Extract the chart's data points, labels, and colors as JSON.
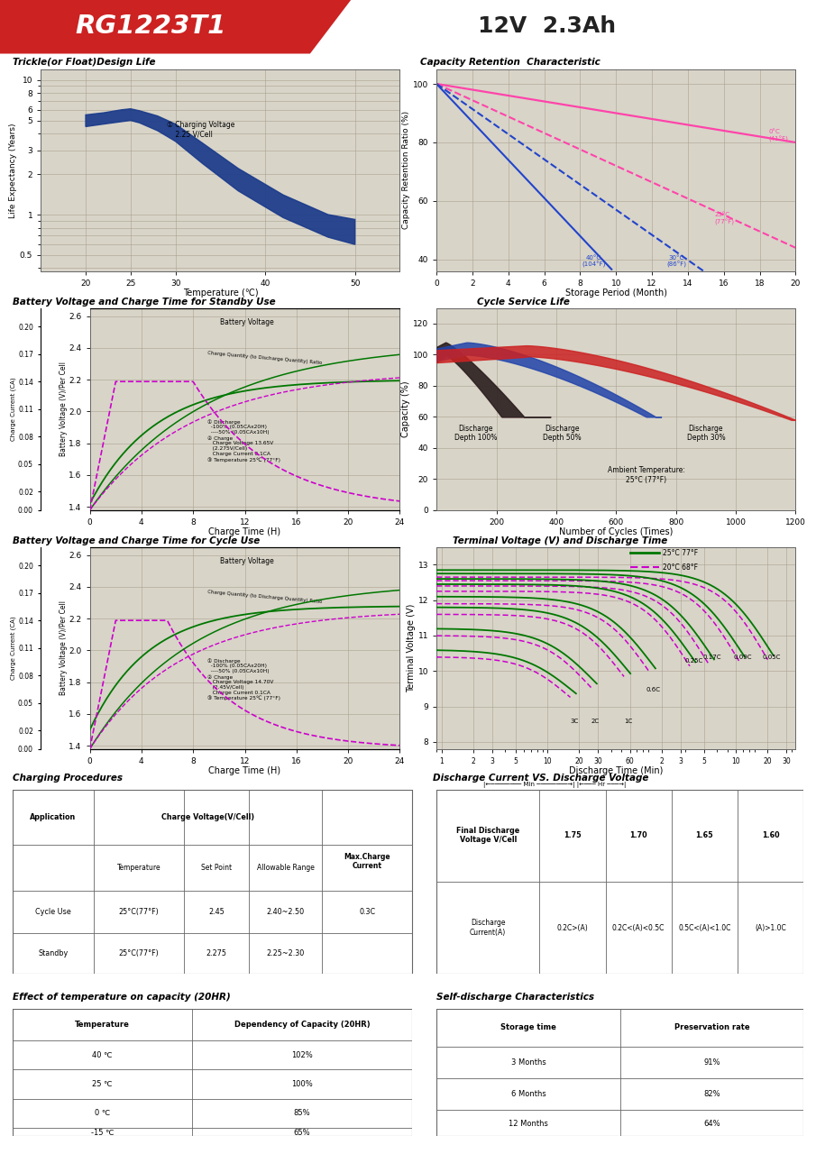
{
  "title_model": "RG1223T1",
  "title_spec": "12V  2.3Ah",
  "header_bg": "#cc2222",
  "page_bg": "#ffffff",
  "chart_bg": "#d8d4c8",
  "grid_color": "#aaa090",
  "trickle_title": "Trickle(or Float)Design Life",
  "trickle_xlabel": "Temperature (℃)",
  "trickle_ylabel": "Life Expectancy (Years)",
  "trickle_annotation": "① Charging Voltage\n    2.25 V/Cell",
  "trickle_curve_color": "#1a3a8a",
  "capacity_title": "Capacity Retention  Characteristic",
  "capacity_xlabel": "Storage Period (Month)",
  "capacity_ylabel": "Capacity Retention Ratio (%)",
  "bv_standby_title": "Battery Voltage and Charge Time for Standby Use",
  "bv_standby_xlabel": "Charge Time (H)",
  "bv_cycle_title": "Battery Voltage and Charge Time for Cycle Use",
  "bv_cycle_xlabel": "Charge Time (H)",
  "cycle_title": "Cycle Service Life",
  "cycle_xlabel": "Number of Cycles (Times)",
  "cycle_ylabel": "Capacity (%)",
  "terminal_title": "Terminal Voltage (V) and Discharge Time",
  "terminal_xlabel": "Discharge Time (Min)",
  "terminal_ylabel": "Terminal Voltage (V)",
  "charging_proc_title": "Charging Procedures",
  "discharge_cv_title": "Discharge Current VS. Discharge Voltage",
  "temp_capacity_title": "Effect of temperature on capacity (20HR)",
  "self_discharge_title": "Self-discharge Characteristics",
  "footer_color": "#cc2222"
}
